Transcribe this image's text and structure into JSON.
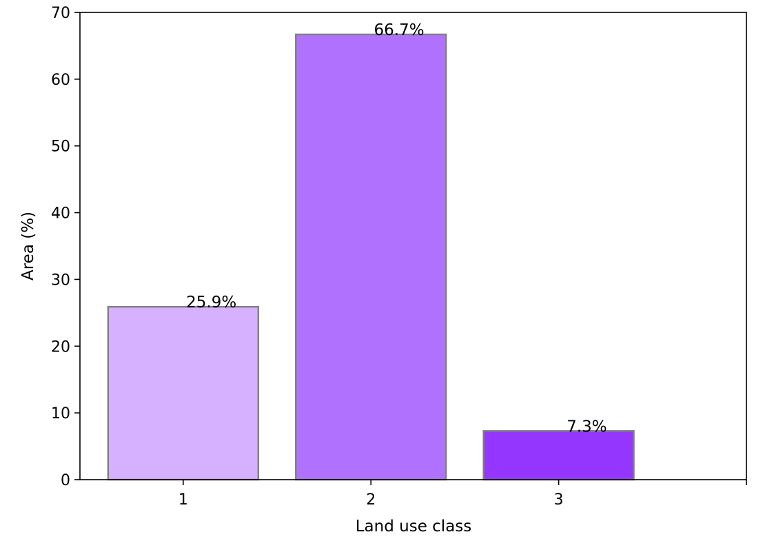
{
  "chart_data": {
    "type": "bar",
    "categories": [
      "1",
      "2",
      "3"
    ],
    "values": [
      25.9,
      66.7,
      7.3
    ],
    "value_labels": [
      "25.9%",
      "66.7%",
      "7.3%"
    ],
    "colors": [
      "#d5b1ff",
      "#b171ff",
      "#9536ff"
    ],
    "edge_color": "#808080",
    "title": "",
    "xlabel": "Land use class",
    "ylabel": "Area (%)",
    "ylim": [
      0,
      70
    ],
    "yticks": [
      0,
      10,
      20,
      30,
      40,
      50,
      60,
      70
    ],
    "xlim": [
      0.45,
      4.0
    ],
    "grid": false
  }
}
